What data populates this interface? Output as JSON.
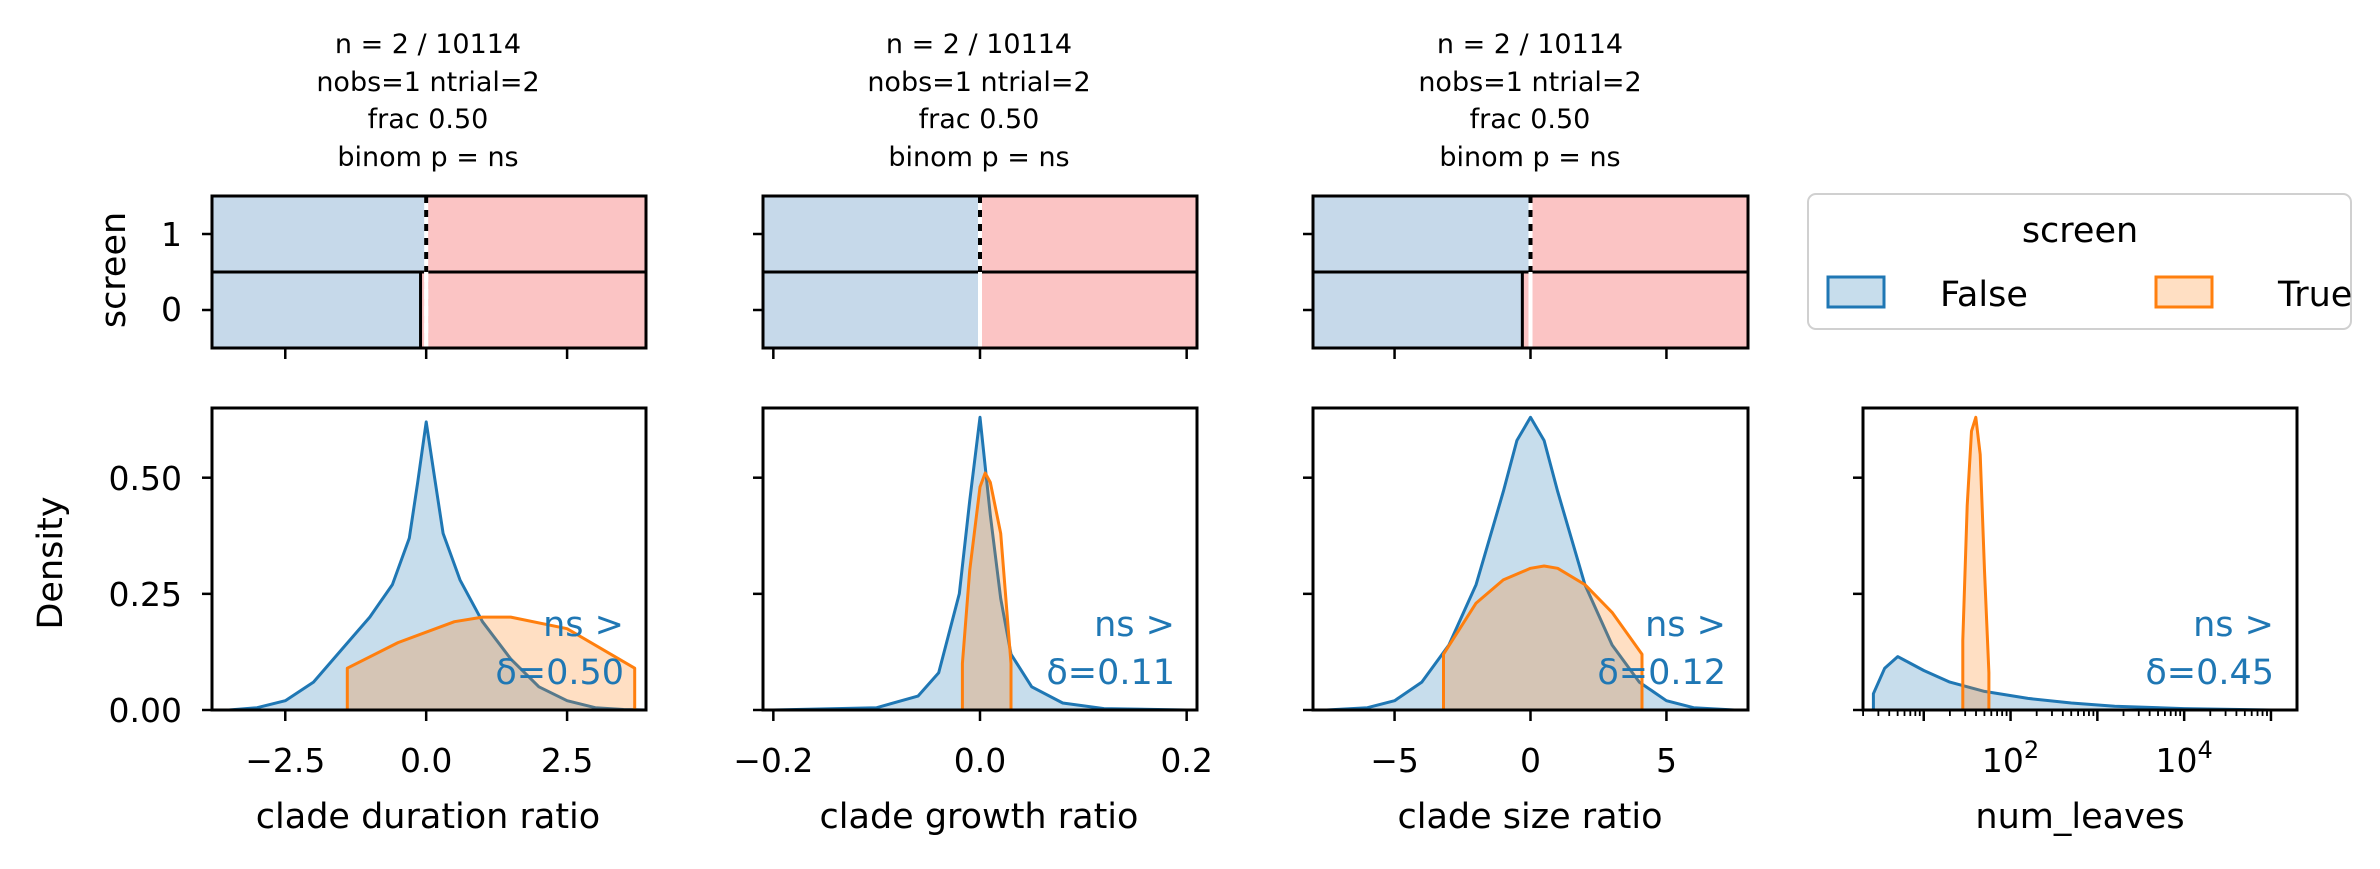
{
  "colors": {
    "false": "#1f77b4",
    "true": "#ff7f0e",
    "strip_false": "#c6d9ea",
    "strip_true": "#fbc4c4",
    "overlap": "#c6c4bc"
  },
  "legend": {
    "title": "screen",
    "items": [
      {
        "label": "False",
        "color": "#1f77b4"
      },
      {
        "label": "True",
        "color": "#ff7f0e"
      }
    ]
  },
  "shared": {
    "strip_ylabel": "screen",
    "density_ylabel": "Density",
    "strip_yticks": [
      "1",
      "0"
    ],
    "density_yticks": [
      "0.50",
      "0.25",
      "0.00"
    ]
  },
  "chart_data": [
    {
      "type": "area",
      "title_lines": [
        "n = 2 / 10114",
        "nobs=1 ntrial=2",
        "frac 0.50",
        "binom p = ns"
      ],
      "xlabel": "clade duration ratio",
      "xlim": [
        -3.8,
        3.9
      ],
      "ylim": [
        0,
        0.65
      ],
      "xticks": [
        {
          "v": -2.5,
          "label": "−2.5"
        },
        {
          "v": 0.0,
          "label": "0.0"
        },
        {
          "v": 2.5,
          "label": "2.5"
        }
      ],
      "strip": {
        "split": 0.0,
        "row1_false_end": 0.0,
        "row0_false_end": -0.1
      },
      "series": [
        {
          "name": "False",
          "x": [
            -3.5,
            -3.0,
            -2.5,
            -2.0,
            -1.5,
            -1.0,
            -0.6,
            -0.3,
            -0.15,
            0.0,
            0.15,
            0.3,
            0.6,
            1.0,
            1.5,
            2.0,
            2.5,
            3.0,
            3.5,
            3.9
          ],
          "y": [
            0.0,
            0.005,
            0.02,
            0.06,
            0.13,
            0.2,
            0.27,
            0.37,
            0.49,
            0.62,
            0.5,
            0.38,
            0.28,
            0.19,
            0.11,
            0.05,
            0.02,
            0.005,
            0.001,
            0.0
          ]
        },
        {
          "name": "True",
          "x": [
            -1.4,
            -1.4,
            -0.5,
            0.5,
            1.0,
            1.5,
            2.5,
            3.7,
            3.7
          ],
          "y": [
            0.0,
            0.09,
            0.145,
            0.19,
            0.2,
            0.2,
            0.175,
            0.09,
            0.0
          ]
        }
      ],
      "annotation": [
        "ns >",
        "δ=0.50"
      ]
    },
    {
      "type": "area",
      "title_lines": [
        "n = 2 / 10114",
        "nobs=1 ntrial=2",
        "frac 0.50",
        "binom p = ns"
      ],
      "xlabel": "clade growth ratio",
      "xlim": [
        -0.21,
        0.21
      ],
      "ylim": [
        0,
        0.65
      ],
      "xticks": [
        {
          "v": -0.2,
          "label": "−0.2"
        },
        {
          "v": 0.0,
          "label": "0.0"
        },
        {
          "v": 0.2,
          "label": "0.2"
        }
      ],
      "strip": {
        "split": 0.0,
        "row1_false_end": 0.0,
        "row0_false_end": 0.0
      },
      "series": [
        {
          "name": "False",
          "x": [
            -0.2,
            -0.1,
            -0.06,
            -0.04,
            -0.02,
            -0.01,
            0.0,
            0.01,
            0.02,
            0.03,
            0.05,
            0.08,
            0.12,
            0.2
          ],
          "y": [
            0.0,
            0.005,
            0.03,
            0.08,
            0.25,
            0.45,
            0.63,
            0.42,
            0.24,
            0.12,
            0.05,
            0.015,
            0.003,
            0.0
          ]
        },
        {
          "name": "True",
          "x": [
            -0.017,
            -0.017,
            -0.01,
            0.0,
            0.005,
            0.01,
            0.02,
            0.03,
            0.03
          ],
          "y": [
            0.0,
            0.1,
            0.3,
            0.48,
            0.51,
            0.49,
            0.38,
            0.1,
            0.0
          ]
        }
      ],
      "annotation": [
        "ns >",
        "δ=0.11"
      ]
    },
    {
      "type": "area",
      "title_lines": [
        "n = 2 / 10114",
        "nobs=1 ntrial=2",
        "frac 0.50",
        "binom p = ns"
      ],
      "xlabel": "clade size ratio",
      "xlim": [
        -8.0,
        8.0
      ],
      "ylim": [
        0,
        0.65
      ],
      "xticks": [
        {
          "v": -5,
          "label": "−5"
        },
        {
          "v": 0,
          "label": "0"
        },
        {
          "v": 5,
          "label": "5"
        }
      ],
      "strip": {
        "split": 0.0,
        "row1_false_end": 0.0,
        "row0_false_end": -0.3
      },
      "series": [
        {
          "name": "False",
          "x": [
            -7.5,
            -6.0,
            -5.0,
            -4.0,
            -3.0,
            -2.0,
            -1.0,
            -0.5,
            0.0,
            0.5,
            1.0,
            2.0,
            3.0,
            4.0,
            5.0,
            6.0,
            7.5
          ],
          "y": [
            0.0,
            0.005,
            0.02,
            0.06,
            0.14,
            0.27,
            0.47,
            0.58,
            0.63,
            0.58,
            0.47,
            0.27,
            0.14,
            0.06,
            0.02,
            0.005,
            0.0
          ]
        },
        {
          "name": "True",
          "x": [
            -3.2,
            -3.2,
            -2.0,
            -1.0,
            0.0,
            0.5,
            1.0,
            2.0,
            3.0,
            4.1,
            4.1
          ],
          "y": [
            0.0,
            0.12,
            0.23,
            0.28,
            0.305,
            0.31,
            0.305,
            0.27,
            0.21,
            0.12,
            0.0
          ]
        }
      ],
      "annotation": [
        "ns >",
        "δ=0.12"
      ]
    },
    {
      "type": "area",
      "xscale": "log",
      "xlabel": "num_leaves",
      "xlim": [
        0.3,
        5.3
      ],
      "ylim": [
        0,
        0.65
      ],
      "xticks": [
        {
          "v": 2,
          "label": "10",
          "sup": "2"
        },
        {
          "v": 4,
          "label": "10",
          "sup": "4"
        }
      ],
      "series": [
        {
          "name": "False",
          "x": [
            0.42,
            0.42,
            0.55,
            0.7,
            0.85,
            1.0,
            1.3,
            1.7,
            2.2,
            2.7,
            3.2,
            4.0,
            5.0
          ],
          "y": [
            0.0,
            0.035,
            0.09,
            0.115,
            0.1,
            0.085,
            0.06,
            0.04,
            0.025,
            0.015,
            0.008,
            0.003,
            0.0
          ]
        },
        {
          "name": "True",
          "x": [
            1.45,
            1.45,
            1.5,
            1.55,
            1.6,
            1.65,
            1.7,
            1.75,
            1.75
          ],
          "y": [
            0.0,
            0.15,
            0.44,
            0.6,
            0.63,
            0.55,
            0.3,
            0.08,
            0.0
          ]
        }
      ],
      "annotation": [
        "ns >",
        "δ=0.45"
      ]
    }
  ]
}
